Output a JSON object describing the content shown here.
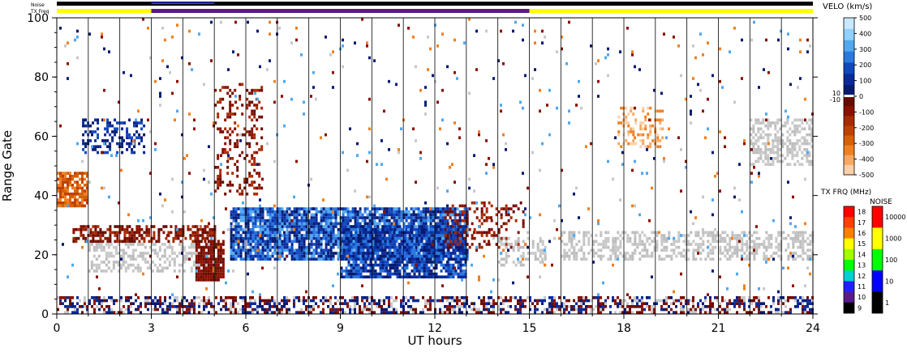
{
  "chart_data": {
    "type": "heatmap",
    "xlabel": "UT hours",
    "ylabel": "Range Gate",
    "x_ticks": [
      "0",
      "3",
      "6",
      "9",
      "12",
      "15",
      "18",
      "21",
      "24"
    ],
    "y_ticks": [
      "0",
      "20",
      "40",
      "60",
      "80",
      "100"
    ],
    "xlim": [
      0,
      24
    ],
    "ylim": [
      0,
      100
    ],
    "status_bars": {
      "noise_label": "Noise",
      "txfreq_label": "TX Freq",
      "txfreq_segments": [
        {
          "start": 0,
          "end": 3,
          "color": "#ffff00"
        },
        {
          "start": 3,
          "end": 15,
          "color": "#5a1a8a"
        },
        {
          "start": 15,
          "end": 24,
          "color": "#ffff00"
        }
      ]
    },
    "velocity_colorbar": {
      "title": "VELO (km/s)",
      "ticks": [
        "500",
        "400",
        "300",
        "200",
        "100",
        "0",
        "-100",
        "-200",
        "-300",
        "-400",
        "-500"
      ],
      "extra_ticks": [
        "10",
        "-10"
      ],
      "colors_positive": [
        "#c8e8ff",
        "#90d0ff",
        "#50a8f0",
        "#2a78e0",
        "#1048c0",
        "#0a2a9a",
        "#061a70"
      ],
      "colors_negative": [
        "#6a0a00",
        "#8a1000",
        "#a82a00",
        "#c04000",
        "#d86000",
        "#f08020",
        "#f8a860",
        "#fad0a8"
      ]
    },
    "txfreq_colorbar": {
      "title": "TX FRQ (MHz)",
      "ticks": [
        "18",
        "17",
        "16",
        "15",
        "14",
        "13",
        "12",
        "11",
        "10",
        "9"
      ],
      "colors": [
        "#ff0000",
        "#ff4000",
        "#ff8000",
        "#ffff00",
        "#a0ff00",
        "#00ff00",
        "#00d0d0",
        "#2020ff",
        "#5a1a8a",
        "#000000"
      ]
    },
    "noise_colorbar": {
      "title": "NOISE",
      "ticks": [
        "10000",
        "1000",
        "100",
        "10",
        "1"
      ],
      "colors": [
        "#ff0000",
        "#ffff00",
        "#00ff00",
        "#0000ff",
        "#000000"
      ]
    },
    "scatter_regions": [
      {
        "x": [
          0,
          24
        ],
        "y": [
          0,
          6
        ],
        "type": "mixed",
        "density": 0.55
      },
      {
        "x": [
          0,
          1
        ],
        "y": [
          36,
          48
        ],
        "type": "neg-strong",
        "density": 0.8
      },
      {
        "x": [
          0.8,
          2.8
        ],
        "y": [
          54,
          66
        ],
        "type": "pos",
        "density": 0.4
      },
      {
        "x": [
          0.5,
          5
        ],
        "y": [
          24,
          30
        ],
        "type": "neg",
        "density": 0.6
      },
      {
        "x": [
          1,
          5
        ],
        "y": [
          14,
          24
        ],
        "type": "gray",
        "density": 0.45
      },
      {
        "x": [
          4.4,
          5.3
        ],
        "y": [
          11,
          25
        ],
        "type": "neg-dark",
        "density": 0.85
      },
      {
        "x": [
          5,
          6.5
        ],
        "y": [
          40,
          78
        ],
        "type": "neg",
        "density": 0.25
      },
      {
        "x": [
          5.5,
          13
        ],
        "y": [
          18,
          36
        ],
        "type": "pos-strong",
        "density": 0.85
      },
      {
        "x": [
          9,
          13
        ],
        "y": [
          12,
          30
        ],
        "type": "pos-dark",
        "density": 0.8
      },
      {
        "x": [
          12.3,
          14.8
        ],
        "y": [
          22,
          38
        ],
        "type": "neg",
        "density": 0.3
      },
      {
        "x": [
          14,
          15.5
        ],
        "y": [
          16,
          26
        ],
        "type": "gray",
        "density": 0.35
      },
      {
        "x": [
          16,
          24
        ],
        "y": [
          18,
          28
        ],
        "type": "gray",
        "density": 0.5
      },
      {
        "x": [
          17.8,
          19.2
        ],
        "y": [
          56,
          70
        ],
        "type": "neg-light",
        "density": 0.35
      },
      {
        "x": [
          22,
          24
        ],
        "y": [
          50,
          66
        ],
        "type": "gray",
        "density": 0.5
      },
      {
        "x": [
          0,
          24
        ],
        "y": [
          6,
          100
        ],
        "type": "sparse",
        "density": 0.02
      }
    ]
  }
}
